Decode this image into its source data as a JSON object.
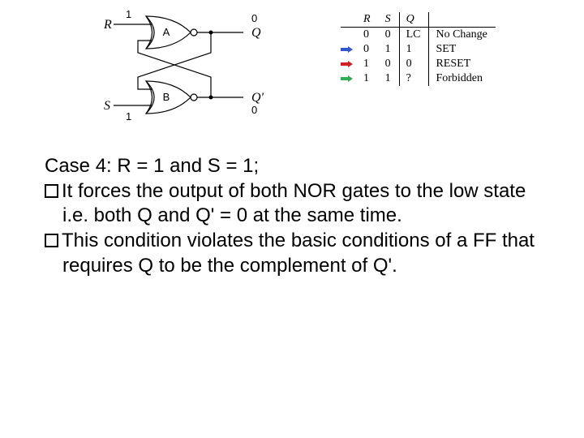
{
  "circuit": {
    "inputs": {
      "R": {
        "label": "R",
        "value": "1"
      },
      "S": {
        "label": "S",
        "value": "1"
      }
    },
    "gates": {
      "top": {
        "label": "A"
      },
      "bottom": {
        "label": "B"
      }
    },
    "outputs": {
      "Q": {
        "label": "Q",
        "value": "0"
      },
      "Qn": {
        "label": "Q'",
        "value": "0"
      }
    },
    "wire_color": "#000000",
    "gate_fill": "#ffffff",
    "gate_stroke": "#000000"
  },
  "truth_table": {
    "headers": [
      "R",
      "S",
      "Q",
      ""
    ],
    "rows": [
      {
        "arrow_color": null,
        "R": "0",
        "S": "0",
        "Q": "LC",
        "desc": "No Change"
      },
      {
        "arrow_color": "#3355cc",
        "R": "0",
        "S": "1",
        "Q": "1",
        "desc": "SET"
      },
      {
        "arrow_color": "#cc2222",
        "R": "1",
        "S": "0",
        "Q": "0",
        "desc": "RESET"
      },
      {
        "arrow_color": "#33aa55",
        "R": "1",
        "S": "1",
        "Q": "?",
        "desc": "Forbidden"
      }
    ],
    "font_size": 14,
    "border_color": "#000000"
  },
  "body_text": {
    "heading": "Case 4: R = 1 and S = 1;",
    "bullets": [
      "It forces the output of both NOR gates to the low state i.e. both Q and Q' = 0 at the same time.",
      "This condition violates the basic conditions of a FF that requires Q to be the complement of Q'."
    ],
    "font_size": 24,
    "text_color": "#000000"
  }
}
